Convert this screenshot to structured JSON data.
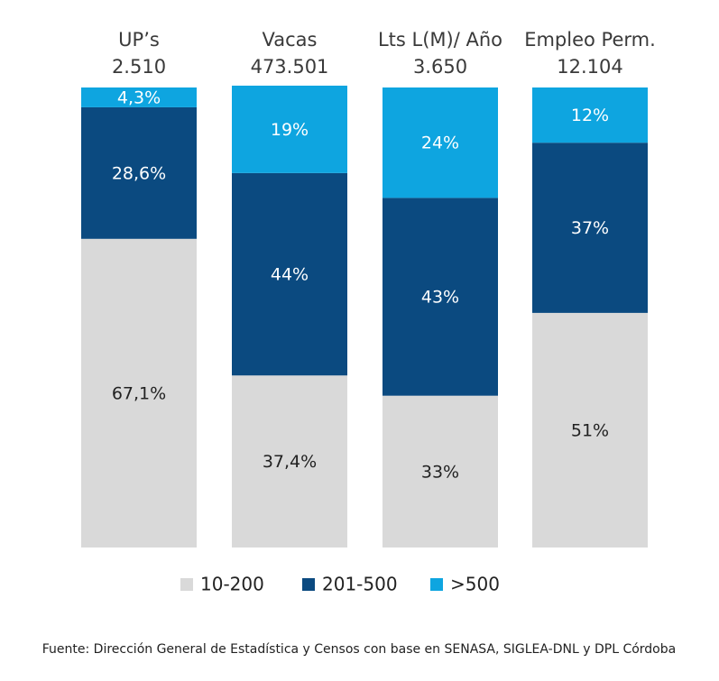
{
  "chart_data": {
    "type": "stacked_bar_100",
    "categories": [
      "UP’s",
      "Vacas",
      "Lts L(M)/ Año",
      "Empleo Perm."
    ],
    "category_totals": [
      "2.510",
      "473.501",
      "3.650",
      "12.104"
    ],
    "ylim": [
      0,
      100
    ],
    "series": [
      {
        "name": "10-200",
        "color": "#d9d9d9",
        "label_color": "#222222",
        "values": [
          67.1,
          37.4,
          33,
          51
        ],
        "value_labels": [
          "67,1%",
          "37,4%",
          "33%",
          "51%"
        ]
      },
      {
        "name": "201-500",
        "color": "#0b4a80",
        "label_color": "#ffffff",
        "values": [
          28.6,
          44,
          43,
          37
        ],
        "value_labels": [
          "28,6%",
          "44%",
          "43%",
          "37%"
        ]
      },
      {
        "name": ">500",
        "color": "#0ea5e0",
        "label_color": "#ffffff",
        "values": [
          4.3,
          19,
          24,
          12
        ],
        "value_labels": [
          "4,3%",
          "19%",
          "24%",
          "12%"
        ]
      }
    ],
    "source": "Fuente: Dirección General de Estadística y Censos con base en SENASA, SIGLEA-DNL y DPL Córdoba"
  }
}
